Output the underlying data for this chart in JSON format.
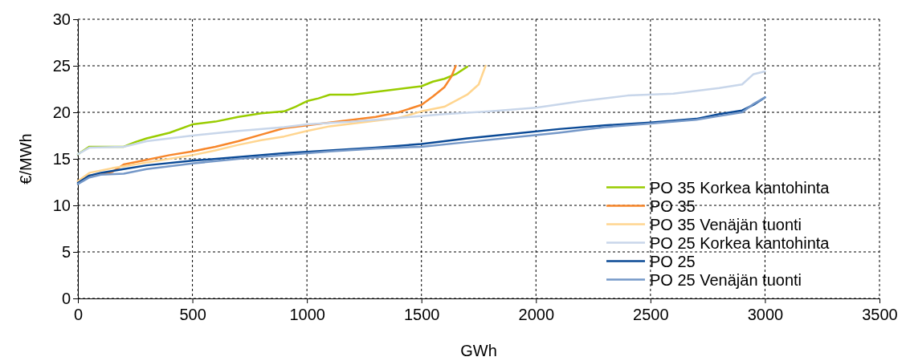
{
  "chart_data": {
    "type": "line",
    "xlabel": "GWh",
    "ylabel": "€/MWh",
    "xlim": [
      0,
      3500
    ],
    "xticks": [
      0,
      500,
      1000,
      1500,
      2000,
      2500,
      3000,
      3500
    ],
    "ylim": [
      0,
      30
    ],
    "yticks": [
      0,
      5,
      10,
      15,
      20,
      25,
      30
    ],
    "grid": true,
    "legend": "bottom right",
    "marker": "none",
    "line_style": "solid",
    "series": [
      {
        "name": "PO 35 Korkea kantohinta",
        "color": "#99cc00",
        "x": [
          0,
          50,
          200,
          250,
          300,
          400,
          500,
          600,
          700,
          800,
          900,
          950,
          1000,
          1050,
          1100,
          1200,
          1300,
          1400,
          1500,
          1550,
          1600,
          1650,
          1700
        ],
        "values": [
          15.5,
          16.3,
          16.3,
          16.8,
          17.2,
          17.8,
          18.7,
          19.0,
          19.5,
          19.9,
          20.1,
          20.6,
          21.2,
          21.5,
          21.9,
          21.9,
          22.2,
          22.5,
          22.8,
          23.3,
          23.6,
          24.1,
          24.9
        ]
      },
      {
        "name": "PO 35",
        "color": "#f7862a",
        "x": [
          0,
          50,
          150,
          200,
          300,
          400,
          500,
          600,
          700,
          800,
          900,
          1000,
          1100,
          1200,
          1300,
          1400,
          1500,
          1550,
          1600,
          1630,
          1650
        ],
        "values": [
          12.6,
          13.2,
          13.6,
          14.4,
          14.9,
          15.4,
          15.8,
          16.3,
          16.9,
          17.6,
          18.3,
          18.6,
          18.9,
          19.2,
          19.5,
          20.0,
          20.8,
          21.7,
          22.7,
          23.8,
          25.0
        ]
      },
      {
        "name": "PO 35 Venäjän tuonti",
        "color": "#ffd58f",
        "x": [
          0,
          50,
          150,
          200,
          300,
          400,
          500,
          600,
          700,
          800,
          900,
          1000,
          1100,
          1200,
          1300,
          1400,
          1500,
          1600,
          1700,
          1750,
          1780
        ],
        "values": [
          12.6,
          13.5,
          14.0,
          14.2,
          14.6,
          15.0,
          15.4,
          15.9,
          16.5,
          17.0,
          17.4,
          18.0,
          18.5,
          18.8,
          19.1,
          19.4,
          20.1,
          20.6,
          21.9,
          23.0,
          25.0
        ]
      },
      {
        "name": "PO 25 Korkea kantohinta",
        "color": "#c8d6ea",
        "x": [
          0,
          50,
          200,
          300,
          500,
          700,
          900,
          1000,
          1200,
          1400,
          1600,
          1800,
          2000,
          2200,
          2400,
          2600,
          2800,
          2900,
          2950,
          3000
        ],
        "values": [
          15.5,
          16.2,
          16.3,
          16.9,
          17.5,
          18.0,
          18.4,
          18.7,
          19.0,
          19.4,
          19.8,
          20.1,
          20.5,
          21.2,
          21.8,
          22.0,
          22.6,
          23.0,
          24.1,
          24.4
        ]
      },
      {
        "name": "PO 25",
        "color": "#0b4a96",
        "x": [
          0,
          50,
          100,
          200,
          300,
          500,
          700,
          900,
          1100,
          1300,
          1500,
          1700,
          1900,
          2100,
          2300,
          2500,
          2700,
          2800,
          2900,
          2950,
          3000
        ],
        "values": [
          12.4,
          13.2,
          13.5,
          13.9,
          14.3,
          14.8,
          15.2,
          15.6,
          15.9,
          16.2,
          16.6,
          17.2,
          17.7,
          18.2,
          18.6,
          18.9,
          19.3,
          19.8,
          20.2,
          20.8,
          21.6
        ]
      },
      {
        "name": "PO 25 Venäjän tuonti",
        "color": "#7598c8",
        "x": [
          0,
          50,
          100,
          200,
          300,
          500,
          700,
          900,
          1100,
          1300,
          1500,
          1700,
          1900,
          2100,
          2300,
          2500,
          2700,
          2800,
          2900,
          2950,
          3000
        ],
        "values": [
          12.3,
          13.0,
          13.3,
          13.4,
          13.9,
          14.5,
          15.0,
          15.4,
          15.8,
          16.1,
          16.3,
          16.8,
          17.3,
          17.8,
          18.4,
          18.8,
          19.2,
          19.6,
          20.0,
          20.9,
          21.6
        ]
      }
    ]
  }
}
